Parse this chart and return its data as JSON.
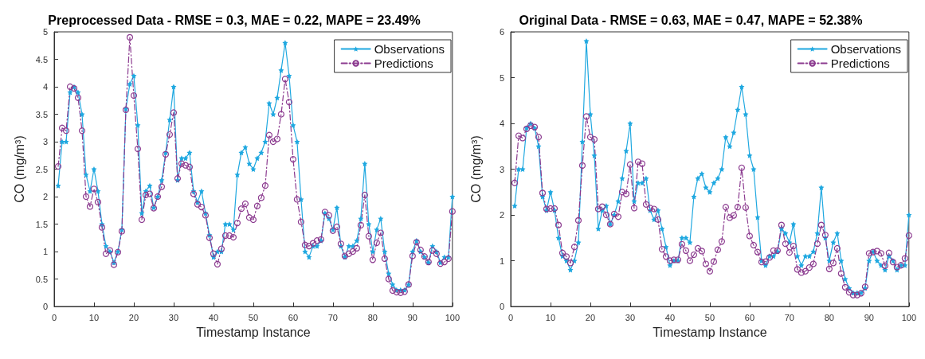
{
  "chart_data": [
    {
      "type": "line",
      "title": "Preprocessed Data - RMSE = 0.3, MAE = 0.22, MAPE = 23.49%",
      "xlabel": "Timestamp Instance",
      "ylabel": "CO (mg/m³)",
      "x": [
        1,
        2,
        3,
        4,
        5,
        6,
        7,
        8,
        9,
        10,
        11,
        12,
        13,
        14,
        15,
        16,
        17,
        18,
        19,
        20,
        21,
        22,
        23,
        24,
        25,
        26,
        27,
        28,
        29,
        30,
        31,
        32,
        33,
        34,
        35,
        36,
        37,
        38,
        39,
        40,
        41,
        42,
        43,
        44,
        45,
        46,
        47,
        48,
        49,
        50,
        51,
        52,
        53,
        54,
        55,
        56,
        57,
        58,
        59,
        60,
        61,
        62,
        63,
        64,
        65,
        66,
        67,
        68,
        69,
        70,
        71,
        72,
        73,
        74,
        75,
        76,
        77,
        78,
        79,
        80,
        81,
        82,
        83,
        84,
        85,
        86,
        87,
        88,
        89,
        90,
        91,
        92,
        93,
        94,
        95,
        96,
        97,
        98,
        99,
        100
      ],
      "series": [
        {
          "name": "Observations",
          "color": "#1fa8e0",
          "marker": "star",
          "line_style": "solid",
          "values": [
            2.2,
            3.0,
            3.0,
            3.9,
            4.0,
            3.9,
            3.5,
            2.4,
            2.1,
            2.5,
            2.1,
            1.5,
            1.1,
            1.0,
            0.8,
            1.0,
            1.4,
            3.6,
            4.05,
            4.2,
            3.3,
            1.7,
            2.1,
            2.2,
            1.8,
            2.0,
            2.3,
            2.8,
            3.4,
            4.0,
            2.3,
            2.7,
            2.7,
            2.8,
            2.1,
            1.9,
            2.1,
            1.7,
            1.3,
            0.9,
            1.0,
            1.0,
            1.5,
            1.5,
            1.4,
            2.4,
            2.8,
            2.9,
            2.6,
            2.5,
            2.7,
            2.8,
            3.0,
            3.7,
            3.5,
            3.8,
            4.3,
            4.8,
            4.2,
            3.3,
            3.0,
            1.95,
            1.0,
            0.9,
            1.1,
            1.1,
            1.2,
            1.7,
            1.6,
            1.4,
            1.8,
            1.1,
            0.9,
            1.1,
            1.1,
            1.2,
            1.6,
            2.6,
            1.5,
            1.0,
            1.4,
            1.6,
            1.0,
            0.6,
            0.4,
            0.3,
            0.3,
            0.3,
            0.4,
            1.0,
            1.2,
            1.0,
            0.9,
            0.8,
            1.1,
            1.0,
            0.8,
            0.9,
            0.9,
            2.0
          ]
        },
        {
          "name": "Predictions",
          "color": "#8b3a8f",
          "marker": "circle",
          "line_style": "dashed",
          "values": [
            2.55,
            3.25,
            3.2,
            4.0,
            3.97,
            3.8,
            3.2,
            2.0,
            1.82,
            2.14,
            1.9,
            1.44,
            0.96,
            1.02,
            0.76,
            0.99,
            1.37,
            3.58,
            4.9,
            3.84,
            2.87,
            1.58,
            2.03,
            2.05,
            1.79,
            2.0,
            2.18,
            2.77,
            3.13,
            3.53,
            2.33,
            2.6,
            2.57,
            2.54,
            2.05,
            1.86,
            1.81,
            1.66,
            1.25,
            0.96,
            0.77,
            1.05,
            1.29,
            1.29,
            1.26,
            1.52,
            1.78,
            1.87,
            1.62,
            1.58,
            1.83,
            1.98,
            2.2,
            3.12,
            3.0,
            3.05,
            3.5,
            4.14,
            3.72,
            2.68,
            1.95,
            1.54,
            1.12,
            1.1,
            1.15,
            1.2,
            1.22,
            1.72,
            1.66,
            1.38,
            1.45,
            1.14,
            0.92,
            0.96,
            1.0,
            1.06,
            1.48,
            2.03,
            1.28,
            0.85,
            1.16,
            1.34,
            0.87,
            0.5,
            0.29,
            0.26,
            0.25,
            0.27,
            0.4,
            0.92,
            1.17,
            1.03,
            0.91,
            0.81,
            1.02,
            0.96,
            0.78,
            0.81,
            0.87,
            1.73
          ]
        }
      ],
      "xlim": [
        0,
        100
      ],
      "xticks": [
        0,
        10,
        20,
        30,
        40,
        50,
        60,
        70,
        80,
        90,
        100
      ],
      "ylim": [
        0,
        5
      ],
      "yticks": [
        0,
        0.5,
        1,
        1.5,
        2,
        2.5,
        3,
        3.5,
        4,
        4.5,
        5
      ],
      "grid": false,
      "legend": "top right"
    },
    {
      "type": "line",
      "title": "Original Data - RMSE = 0.63, MAE = 0.47, MAPE = 52.38%",
      "xlabel": "Timestamp Instance",
      "ylabel": "CO (mg/m³)",
      "x": [
        1,
        2,
        3,
        4,
        5,
        6,
        7,
        8,
        9,
        10,
        11,
        12,
        13,
        14,
        15,
        16,
        17,
        18,
        19,
        20,
        21,
        22,
        23,
        24,
        25,
        26,
        27,
        28,
        29,
        30,
        31,
        32,
        33,
        34,
        35,
        36,
        37,
        38,
        39,
        40,
        41,
        42,
        43,
        44,
        45,
        46,
        47,
        48,
        49,
        50,
        51,
        52,
        53,
        54,
        55,
        56,
        57,
        58,
        59,
        60,
        61,
        62,
        63,
        64,
        65,
        66,
        67,
        68,
        69,
        70,
        71,
        72,
        73,
        74,
        75,
        76,
        77,
        78,
        79,
        80,
        81,
        82,
        83,
        84,
        85,
        86,
        87,
        88,
        89,
        90,
        91,
        92,
        93,
        94,
        95,
        96,
        97,
        98,
        99,
        100
      ],
      "series": [
        {
          "name": "Observations",
          "color": "#1fa8e0",
          "marker": "star",
          "line_style": "solid",
          "values": [
            2.2,
            3.0,
            3.0,
            3.9,
            4.0,
            3.9,
            3.5,
            2.4,
            2.1,
            2.5,
            2.1,
            1.5,
            1.1,
            1.0,
            0.8,
            1.0,
            1.4,
            3.6,
            5.8,
            4.2,
            3.3,
            1.7,
            2.1,
            2.2,
            1.8,
            2.0,
            2.3,
            2.8,
            3.4,
            4.0,
            2.3,
            2.7,
            2.7,
            2.8,
            2.1,
            1.9,
            2.1,
            1.7,
            1.3,
            0.9,
            1.0,
            1.0,
            1.5,
            1.5,
            1.4,
            2.4,
            2.8,
            2.9,
            2.6,
            2.5,
            2.7,
            2.8,
            3.0,
            3.7,
            3.5,
            3.8,
            4.3,
            4.8,
            4.2,
            3.3,
            3.0,
            1.95,
            1.0,
            0.9,
            1.1,
            1.1,
            1.2,
            1.7,
            1.6,
            1.4,
            1.8,
            1.1,
            0.9,
            1.1,
            1.1,
            1.2,
            1.6,
            2.6,
            1.5,
            1.0,
            1.4,
            1.6,
            1.0,
            0.6,
            0.4,
            0.3,
            0.3,
            0.3,
            0.4,
            1.0,
            1.2,
            1.0,
            0.9,
            0.8,
            1.1,
            1.0,
            0.8,
            0.9,
            0.9,
            2.0
          ]
        },
        {
          "name": "Predictions",
          "color": "#8b3a8f",
          "marker": "circle",
          "line_style": "dashed",
          "values": [
            2.7,
            3.73,
            3.68,
            3.88,
            3.95,
            3.92,
            3.7,
            2.48,
            2.13,
            2.14,
            2.14,
            1.78,
            1.17,
            1.09,
            0.95,
            1.3,
            1.88,
            3.08,
            4.15,
            3.7,
            3.65,
            2.13,
            2.18,
            2.0,
            1.8,
            2.02,
            1.96,
            2.5,
            2.46,
            3.1,
            2.15,
            3.16,
            3.12,
            2.23,
            2.15,
            2.13,
            1.9,
            1.25,
            1.09,
            1.0,
            1.02,
            1.02,
            1.36,
            1.22,
            1.0,
            1.13,
            1.27,
            1.21,
            0.93,
            0.77,
            0.98,
            1.24,
            1.42,
            2.17,
            1.94,
            1.99,
            2.17,
            3.03,
            2.16,
            1.54,
            1.34,
            1.19,
            0.97,
            0.98,
            1.07,
            1.22,
            1.22,
            1.78,
            1.37,
            1.18,
            1.32,
            0.81,
            0.74,
            0.77,
            0.85,
            0.93,
            1.37,
            1.78,
            1.56,
            0.82,
            0.95,
            1.27,
            0.72,
            0.42,
            0.31,
            0.25,
            0.25,
            0.29,
            0.43,
            1.16,
            1.19,
            1.21,
            1.16,
            0.89,
            1.17,
            0.97,
            0.86,
            0.9,
            1.05,
            1.55
          ]
        }
      ],
      "xlim": [
        0,
        100
      ],
      "xticks": [
        0,
        10,
        20,
        30,
        40,
        50,
        60,
        70,
        80,
        90,
        100
      ],
      "ylim": [
        0,
        6
      ],
      "yticks": [
        0,
        1,
        2,
        3,
        4,
        5,
        6
      ],
      "grid": false,
      "legend": "top right"
    }
  ]
}
